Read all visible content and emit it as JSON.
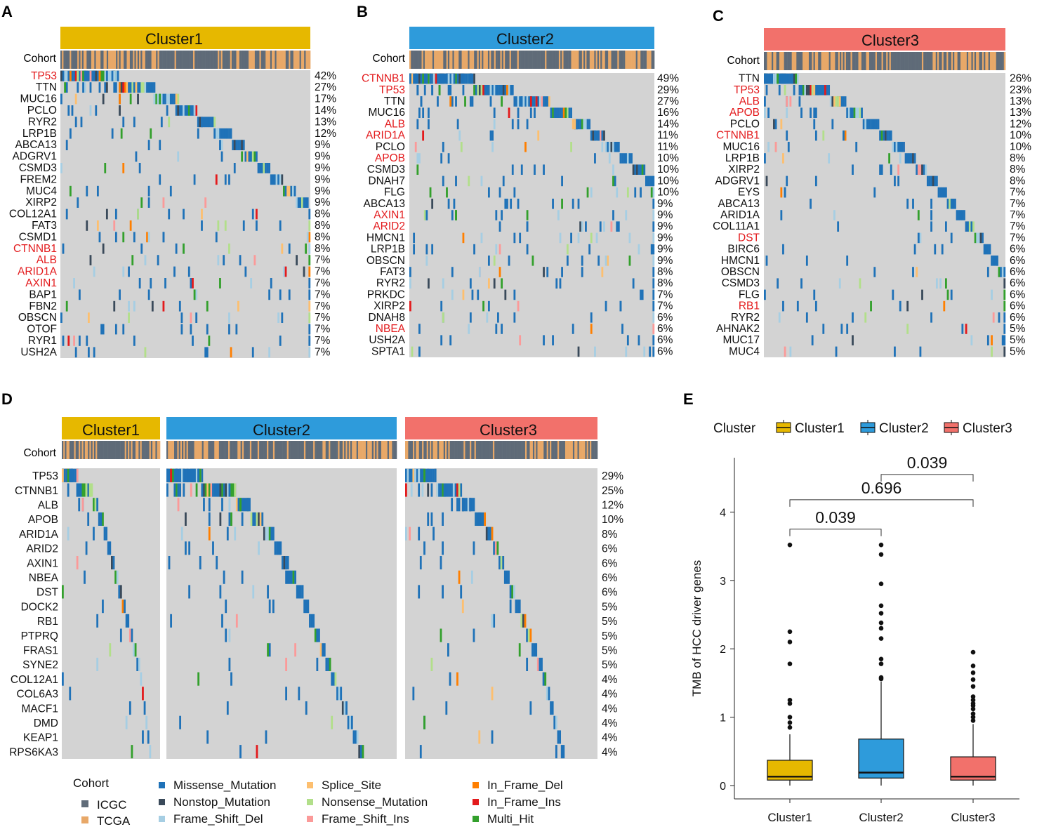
{
  "colors": {
    "cluster1": "#E6B800",
    "cluster2": "#2E9BDB",
    "cluster3": "#F2716B",
    "icgc": "#5F6B78",
    "tcga": "#E8A868",
    "bg": "#D3D3D3",
    "Missense_Mutation": "#1F72B8",
    "Nonstop_Mutation": "#3A4A5A",
    "Frame_Shift_Del": "#A6CEE3",
    "Splice_Site": "#FDBF6F",
    "Nonsense_Mutation": "#B2DF8A",
    "Frame_Shift_Ins": "#FB9A99",
    "In_Frame_Del": "#FF7F00",
    "In_Frame_Ins": "#E31A1C",
    "Multi_Hit": "#33A02C",
    "highlight": "#E31A1C"
  },
  "panels": {
    "A": {
      "letter": "A",
      "cluster": "Cluster1",
      "cohort_label": "Cohort",
      "genes": [
        "TP53",
        "TTN",
        "MUC16",
        "PCLO",
        "RYR2",
        "LRP1B",
        "ABCA13",
        "ADGRV1",
        "CSMD3",
        "FREM2",
        "MUC4",
        "XIRP2",
        "COL12A1",
        "FAT3",
        "CSMD1",
        "CTNNB1",
        "ALB",
        "ARID1A",
        "AXIN1",
        "BAP1",
        "FBN2",
        "OBSCN",
        "OTOF",
        "RYR1",
        "USH2A"
      ],
      "pcts": [
        "42%",
        "27%",
        "17%",
        "14%",
        "13%",
        "12%",
        "9%",
        "9%",
        "9%",
        "9%",
        "9%",
        "9%",
        "8%",
        "8%",
        "8%",
        "8%",
        "7%",
        "7%",
        "7%",
        "7%",
        "7%",
        "7%",
        "7%",
        "7%",
        "7%"
      ],
      "highlighted": [
        "TP53",
        "CTNNB1",
        "ALB",
        "ARID1A",
        "AXIN1"
      ]
    },
    "B": {
      "letter": "B",
      "cluster": "Cluster2",
      "cohort_label": "Cohort",
      "genes": [
        "CTNNB1",
        "TP53",
        "TTN",
        "MUC16",
        "ALB",
        "ARID1A",
        "PCLO",
        "APOB",
        "CSMD3",
        "DNAH7",
        "FLG",
        "ABCA13",
        "AXIN1",
        "ARID2",
        "HMCN1",
        "LRP1B",
        "OBSCN",
        "FAT3",
        "RYR2",
        "PRKDC",
        "XIRP2",
        "DNAH8",
        "NBEA",
        "USH2A",
        "SPTA1"
      ],
      "pcts": [
        "49%",
        "29%",
        "27%",
        "16%",
        "14%",
        "11%",
        "11%",
        "10%",
        "10%",
        "10%",
        "10%",
        "9%",
        "9%",
        "9%",
        "9%",
        "9%",
        "9%",
        "8%",
        "8%",
        "7%",
        "7%",
        "6%",
        "6%",
        "6%",
        "6%"
      ],
      "highlighted": [
        "CTNNB1",
        "TP53",
        "ALB",
        "ARID1A",
        "APOB",
        "AXIN1",
        "ARID2",
        "NBEA"
      ]
    },
    "C": {
      "letter": "C",
      "cluster": "Cluster3",
      "cohort_label": "Cohort",
      "genes": [
        "TTN",
        "TP53",
        "ALB",
        "APOB",
        "PCLO",
        "CTNNB1",
        "MUC16",
        "LRP1B",
        "XIRP2",
        "ADGRV1",
        "EYS",
        "ABCA13",
        "ARID1A",
        "COL11A1",
        "DST",
        "BIRC6",
        "HMCN1",
        "OBSCN",
        "CSMD3",
        "FLG",
        "RB1",
        "RYR2",
        "AHNAK2",
        "MUC17",
        "MUC4"
      ],
      "pcts": [
        "26%",
        "23%",
        "13%",
        "13%",
        "12%",
        "10%",
        "10%",
        "8%",
        "8%",
        "8%",
        "7%",
        "7%",
        "7%",
        "7%",
        "7%",
        "6%",
        "6%",
        "6%",
        "6%",
        "6%",
        "6%",
        "6%",
        "5%",
        "5%",
        "5%"
      ],
      "highlighted": [
        "TP53",
        "ALB",
        "APOB",
        "CTNNB1",
        "DST",
        "RB1"
      ]
    },
    "D": {
      "letter": "D",
      "clusters": [
        "Cluster1",
        "Cluster2",
        "Cluster3"
      ],
      "cohort_label": "Cohort",
      "genes": [
        "TP53",
        "CTNNB1",
        "ALB",
        "APOB",
        "ARID1A",
        "ARID2",
        "AXIN1",
        "NBEA",
        "DST",
        "DOCK2",
        "RB1",
        "PTPRQ",
        "FRAS1",
        "SYNE2",
        "COL12A1",
        "COL6A3",
        "MACF1",
        "DMD",
        "KEAP1",
        "RPS6KA3"
      ],
      "pcts": [
        "29%",
        "25%",
        "12%",
        "10%",
        "8%",
        "6%",
        "6%",
        "6%",
        "6%",
        "5%",
        "5%",
        "5%",
        "5%",
        "5%",
        "4%",
        "4%",
        "4%",
        "4%",
        "4%",
        "4%"
      ]
    }
  },
  "legend": {
    "cohort_title": "Cohort",
    "cohorts": [
      "ICGC",
      "TCGA"
    ],
    "mutations": [
      "Missense_Mutation",
      "Nonstop_Mutation",
      "Frame_Shift_Del",
      "Splice_Site",
      "Nonsense_Mutation",
      "Frame_Shift_Ins",
      "In_Frame_Del",
      "In_Frame_Ins",
      "Multi_Hit"
    ]
  },
  "chart_data": {
    "type": "box",
    "panel_letter": "E",
    "legend_title": "Cluster",
    "categories": [
      "Cluster1",
      "Cluster2",
      "Cluster3"
    ],
    "ylabel": "TMB of HCC driver genes",
    "xlabel": "",
    "ylim": [
      -0.2,
      4.8
    ],
    "yticks": [
      0,
      1,
      2,
      3,
      4
    ],
    "boxes": [
      {
        "name": "Cluster1",
        "q1": 0.08,
        "median": 0.13,
        "q3": 0.37,
        "whisker_low": 0,
        "whisker_high": 0.75,
        "outliers": [
          0.85,
          0.92,
          1.0,
          1.2,
          1.25,
          1.78,
          2.1,
          2.25,
          3.52
        ]
      },
      {
        "name": "Cluster2",
        "q1": 0.11,
        "median": 0.19,
        "q3": 0.68,
        "whisker_low": 0,
        "whisker_high": 1.52,
        "outliers": [
          1.56,
          1.58,
          1.78,
          1.85,
          2.15,
          2.3,
          2.38,
          2.52,
          2.63,
          2.95,
          3.38,
          3.52
        ]
      },
      {
        "name": "Cluster3",
        "q1": 0.08,
        "median": 0.13,
        "q3": 0.42,
        "whisker_low": 0,
        "whisker_high": 0.9,
        "outliers": [
          0.95,
          1.0,
          1.05,
          1.12,
          1.17,
          1.2,
          1.25,
          1.3,
          1.45,
          1.55,
          1.65,
          1.75,
          1.95
        ]
      }
    ],
    "comparisons": [
      {
        "pair": [
          "Cluster1",
          "Cluster2"
        ],
        "p": "0.039",
        "y": 3.75
      },
      {
        "pair": [
          "Cluster1",
          "Cluster3"
        ],
        "p": "0.696",
        "y": 4.18
      },
      {
        "pair": [
          "Cluster2",
          "Cluster3"
        ],
        "p": "0.039",
        "y": 4.55
      }
    ]
  }
}
